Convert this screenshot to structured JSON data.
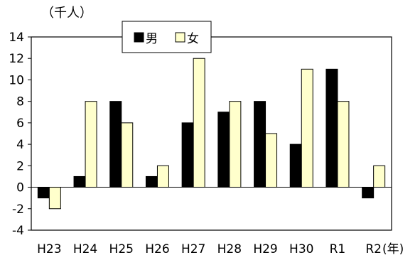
{
  "chart_data": {
    "type": "bar",
    "unit_label": "（千人）",
    "x_unit_label": "(年)",
    "categories": [
      "H23",
      "H24",
      "H25",
      "H26",
      "H27",
      "H28",
      "H29",
      "H30",
      "R1",
      "R2"
    ],
    "series": [
      {
        "name": "男",
        "color": "#000000",
        "values": [
          -1,
          1,
          8,
          1,
          6,
          7,
          8,
          4,
          11,
          -1
        ]
      },
      {
        "name": "女",
        "color": "#FFFFCC",
        "values": [
          -2,
          8,
          6,
          2,
          12,
          8,
          5,
          11,
          8,
          2
        ]
      }
    ],
    "ylim": [
      -4,
      14
    ],
    "yticks": [
      -4,
      -2,
      0,
      2,
      4,
      6,
      8,
      10,
      12,
      14
    ],
    "ytick_labels": [
      "-4",
      "-2",
      "0",
      "2",
      "4",
      "6",
      "8",
      "10",
      "12",
      "14"
    ],
    "grid": false,
    "legend_position": "top-left"
  }
}
